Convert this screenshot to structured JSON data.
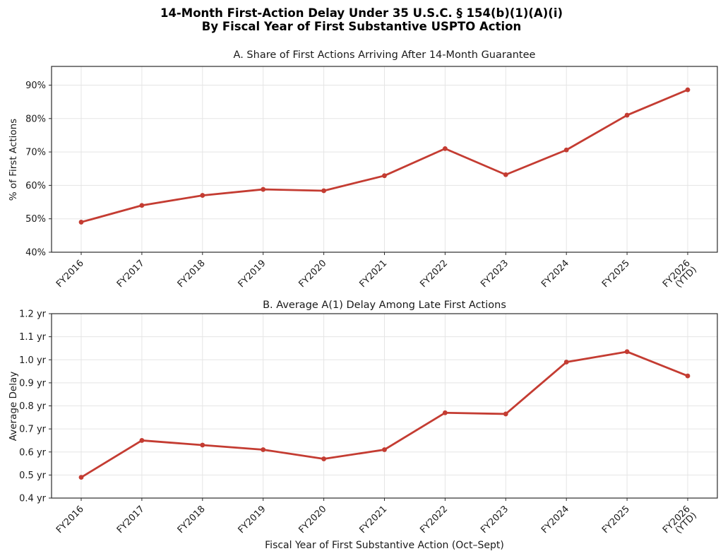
{
  "figure": {
    "title_line1": "14-Month First-Action Delay Under 35 U.S.C. § 154(b)(1)(A)(i)",
    "title_line2": "By Fiscal Year of First Substantive USPTO Action"
  },
  "colors": {
    "line": "#c43c32",
    "grid": "#e5e5e5",
    "spine": "#2b2b2b",
    "tick_label": "#1a1a1a"
  },
  "chart_data": [
    {
      "type": "line",
      "title": "A. Share of First Actions Arriving After 14-Month Guarantee",
      "categories": [
        "FY2016",
        "FY2017",
        "FY2018",
        "FY2019",
        "FY2020",
        "FY2021",
        "FY2022",
        "FY2023",
        "FY2024",
        "FY2025",
        "FY2026\n(YTD)"
      ],
      "values": [
        49.0,
        54.0,
        57.0,
        58.8,
        58.4,
        62.9,
        71.0,
        63.2,
        70.6,
        81.0,
        88.6
      ],
      "xlabel": "",
      "ylabel": "% of First Actions",
      "ylim": [
        40,
        95.6
      ],
      "yticks": [
        40,
        50,
        60,
        70,
        80,
        90
      ],
      "ytick_suffix": "%",
      "ytick_decimals": 0,
      "grid": true,
      "legend": "none",
      "marker": "circle"
    },
    {
      "type": "line",
      "title": "B. Average A(1) Delay Among Late First Actions",
      "categories": [
        "FY2016",
        "FY2017",
        "FY2018",
        "FY2019",
        "FY2020",
        "FY2021",
        "FY2022",
        "FY2023",
        "FY2024",
        "FY2025",
        "FY2026\n(YTD)"
      ],
      "values": [
        0.49,
        0.65,
        0.63,
        0.61,
        0.57,
        0.61,
        0.77,
        0.765,
        0.99,
        1.035,
        0.93
      ],
      "xlabel": "Fiscal Year of First Substantive Action (Oct–Sept)",
      "ylabel": "Average Delay",
      "ylim": [
        0.4,
        1.2
      ],
      "yticks": [
        0.4,
        0.5,
        0.6,
        0.7,
        0.8,
        0.9,
        1.0,
        1.1,
        1.2
      ],
      "ytick_suffix": " yr",
      "ytick_decimals": 1,
      "grid": true,
      "legend": "none",
      "marker": "circle"
    }
  ]
}
